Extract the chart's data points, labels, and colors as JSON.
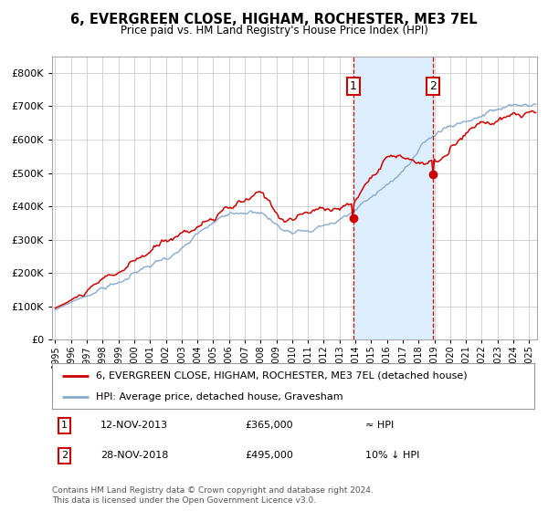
{
  "title": "6, EVERGREEN CLOSE, HIGHAM, ROCHESTER, ME3 7EL",
  "subtitle": "Price paid vs. HM Land Registry's House Price Index (HPI)",
  "ylabel_ticks": [
    0,
    100000,
    200000,
    300000,
    400000,
    500000,
    600000,
    700000,
    800000
  ],
  "ylim": [
    0,
    850000
  ],
  "xlim_start": 1994.8,
  "xlim_end": 2025.5,
  "sale1_date": 2013.87,
  "sale1_price": 365000,
  "sale1_label": "1",
  "sale1_text": "12-NOV-2013",
  "sale1_price_text": "£365,000",
  "sale1_note": "≈ HPI",
  "sale2_date": 2018.92,
  "sale2_price": 495000,
  "sale2_label": "2",
  "sale2_text": "28-NOV-2018",
  "sale2_price_text": "£495,000",
  "sale2_note": "10% ↓ HPI",
  "legend_line1": "6, EVERGREEN CLOSE, HIGHAM, ROCHESTER, ME3 7EL (detached house)",
  "legend_line2": "HPI: Average price, detached house, Gravesham",
  "footer": "Contains HM Land Registry data © Crown copyright and database right 2024.\nThis data is licensed under the Open Government Licence v3.0.",
  "red_color": "#cc0000",
  "blue_color": "#88aacc",
  "shade_color": "#ddeeff",
  "grid_color": "#cccccc",
  "bg_color": "#ffffff"
}
